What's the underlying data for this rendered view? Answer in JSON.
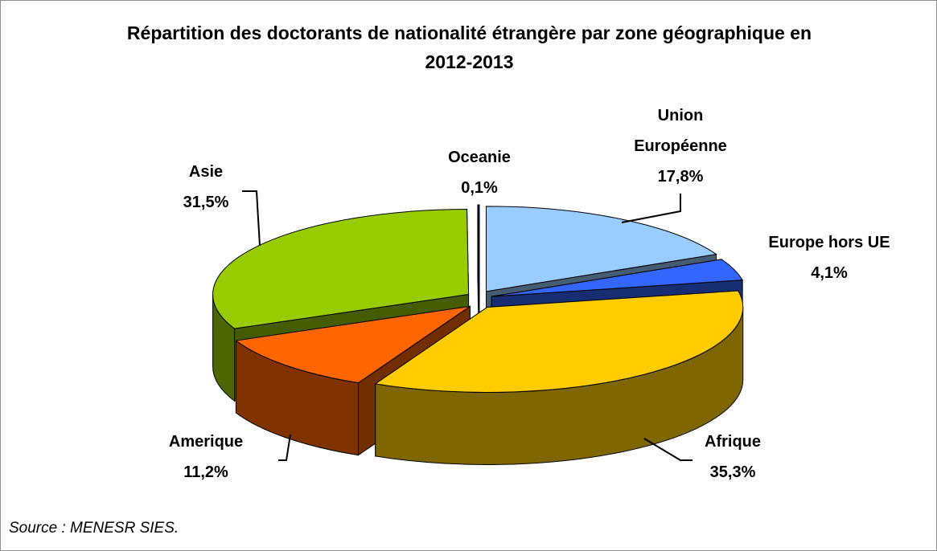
{
  "chart_data": {
    "type": "pie",
    "title": "Répartition des doctorants de nationalité étrangère par zone géographique en 2012-2013",
    "categories": [
      "Union Européenne",
      "Europe hors UE",
      "Afrique",
      "Amerique",
      "Asie",
      "Oceanie"
    ],
    "values": [
      17.8,
      4.1,
      35.3,
      11.2,
      31.5,
      0.1
    ],
    "value_labels": [
      "17,8%",
      "4,1%",
      "35,3%",
      "11,2%",
      "31,5%",
      "0,1%"
    ],
    "colors": [
      "#99ccff",
      "#3366ff",
      "#ffcc00",
      "#ff6600",
      "#99cc00",
      "#000080"
    ],
    "source": "Source : MENESR SIES."
  }
}
